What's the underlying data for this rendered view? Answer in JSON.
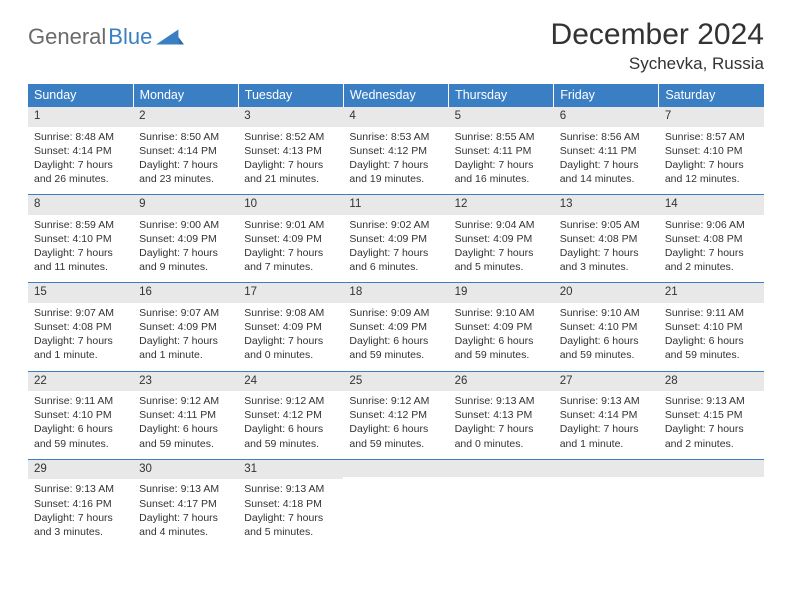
{
  "logo": {
    "text1": "General",
    "text2": "Blue"
  },
  "title": "December 2024",
  "location": "Sychevka, Russia",
  "colors": {
    "header_bg": "#3a7fc4",
    "header_text": "#ffffff",
    "daynum_bg": "#e8e8e8",
    "border": "#3a7fc4",
    "body_bg": "#ffffff",
    "text": "#333333",
    "logo_gray": "#6b6b6b",
    "logo_blue": "#3a7fc4"
  },
  "typography": {
    "title_fontsize": 30,
    "location_fontsize": 17,
    "weekday_fontsize": 12.5,
    "cell_fontsize": 10.5
  },
  "weekdays": [
    "Sunday",
    "Monday",
    "Tuesday",
    "Wednesday",
    "Thursday",
    "Friday",
    "Saturday"
  ],
  "weeks": [
    [
      {
        "n": "1",
        "sr": "8:48 AM",
        "ss": "4:14 PM",
        "dl": "7 hours and 26 minutes."
      },
      {
        "n": "2",
        "sr": "8:50 AM",
        "ss": "4:14 PM",
        "dl": "7 hours and 23 minutes."
      },
      {
        "n": "3",
        "sr": "8:52 AM",
        "ss": "4:13 PM",
        "dl": "7 hours and 21 minutes."
      },
      {
        "n": "4",
        "sr": "8:53 AM",
        "ss": "4:12 PM",
        "dl": "7 hours and 19 minutes."
      },
      {
        "n": "5",
        "sr": "8:55 AM",
        "ss": "4:11 PM",
        "dl": "7 hours and 16 minutes."
      },
      {
        "n": "6",
        "sr": "8:56 AM",
        "ss": "4:11 PM",
        "dl": "7 hours and 14 minutes."
      },
      {
        "n": "7",
        "sr": "8:57 AM",
        "ss": "4:10 PM",
        "dl": "7 hours and 12 minutes."
      }
    ],
    [
      {
        "n": "8",
        "sr": "8:59 AM",
        "ss": "4:10 PM",
        "dl": "7 hours and 11 minutes."
      },
      {
        "n": "9",
        "sr": "9:00 AM",
        "ss": "4:09 PM",
        "dl": "7 hours and 9 minutes."
      },
      {
        "n": "10",
        "sr": "9:01 AM",
        "ss": "4:09 PM",
        "dl": "7 hours and 7 minutes."
      },
      {
        "n": "11",
        "sr": "9:02 AM",
        "ss": "4:09 PM",
        "dl": "7 hours and 6 minutes."
      },
      {
        "n": "12",
        "sr": "9:04 AM",
        "ss": "4:09 PM",
        "dl": "7 hours and 5 minutes."
      },
      {
        "n": "13",
        "sr": "9:05 AM",
        "ss": "4:08 PM",
        "dl": "7 hours and 3 minutes."
      },
      {
        "n": "14",
        "sr": "9:06 AM",
        "ss": "4:08 PM",
        "dl": "7 hours and 2 minutes."
      }
    ],
    [
      {
        "n": "15",
        "sr": "9:07 AM",
        "ss": "4:08 PM",
        "dl": "7 hours and 1 minute."
      },
      {
        "n": "16",
        "sr": "9:07 AM",
        "ss": "4:09 PM",
        "dl": "7 hours and 1 minute."
      },
      {
        "n": "17",
        "sr": "9:08 AM",
        "ss": "4:09 PM",
        "dl": "7 hours and 0 minutes."
      },
      {
        "n": "18",
        "sr": "9:09 AM",
        "ss": "4:09 PM",
        "dl": "6 hours and 59 minutes."
      },
      {
        "n": "19",
        "sr": "9:10 AM",
        "ss": "4:09 PM",
        "dl": "6 hours and 59 minutes."
      },
      {
        "n": "20",
        "sr": "9:10 AM",
        "ss": "4:10 PM",
        "dl": "6 hours and 59 minutes."
      },
      {
        "n": "21",
        "sr": "9:11 AM",
        "ss": "4:10 PM",
        "dl": "6 hours and 59 minutes."
      }
    ],
    [
      {
        "n": "22",
        "sr": "9:11 AM",
        "ss": "4:10 PM",
        "dl": "6 hours and 59 minutes."
      },
      {
        "n": "23",
        "sr": "9:12 AM",
        "ss": "4:11 PM",
        "dl": "6 hours and 59 minutes."
      },
      {
        "n": "24",
        "sr": "9:12 AM",
        "ss": "4:12 PM",
        "dl": "6 hours and 59 minutes."
      },
      {
        "n": "25",
        "sr": "9:12 AM",
        "ss": "4:12 PM",
        "dl": "6 hours and 59 minutes."
      },
      {
        "n": "26",
        "sr": "9:13 AM",
        "ss": "4:13 PM",
        "dl": "7 hours and 0 minutes."
      },
      {
        "n": "27",
        "sr": "9:13 AM",
        "ss": "4:14 PM",
        "dl": "7 hours and 1 minute."
      },
      {
        "n": "28",
        "sr": "9:13 AM",
        "ss": "4:15 PM",
        "dl": "7 hours and 2 minutes."
      }
    ],
    [
      {
        "n": "29",
        "sr": "9:13 AM",
        "ss": "4:16 PM",
        "dl": "7 hours and 3 minutes."
      },
      {
        "n": "30",
        "sr": "9:13 AM",
        "ss": "4:17 PM",
        "dl": "7 hours and 4 minutes."
      },
      {
        "n": "31",
        "sr": "9:13 AM",
        "ss": "4:18 PM",
        "dl": "7 hours and 5 minutes."
      },
      null,
      null,
      null,
      null
    ]
  ],
  "labels": {
    "sunrise": "Sunrise:",
    "sunset": "Sunset:",
    "daylight": "Daylight:"
  }
}
